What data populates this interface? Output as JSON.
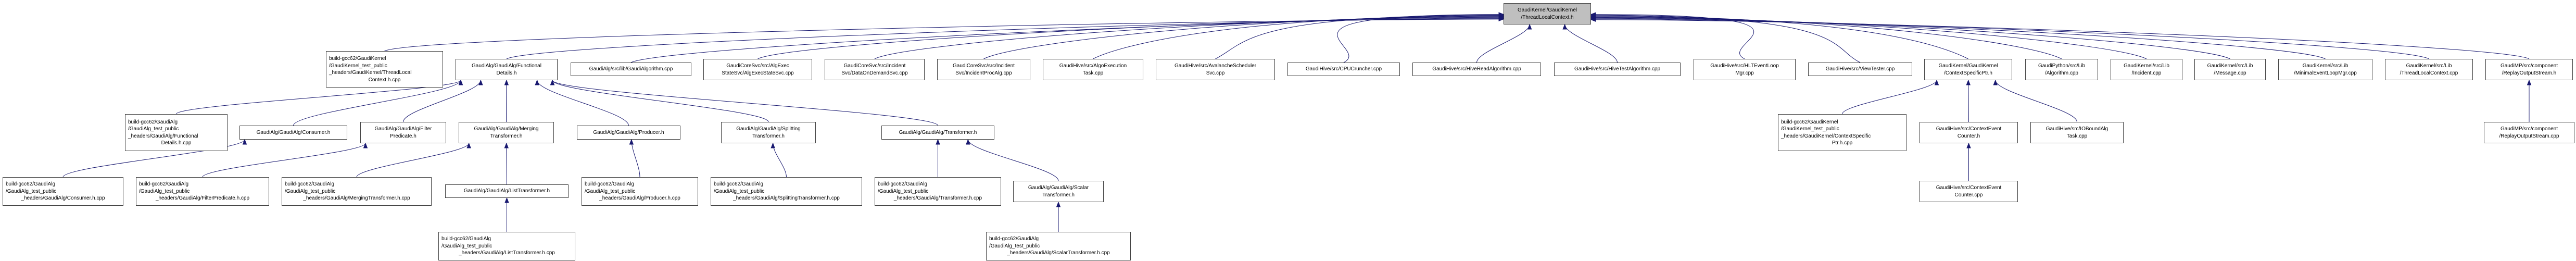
{
  "colors": {
    "edge": "#191970",
    "root_fill": "#bfbfbf",
    "border": "#404040"
  },
  "nodes": [
    {
      "id": "root",
      "lines": [
        "GaudiKernel/GaudiKernel",
        "/ThreadLocalContext.h"
      ]
    },
    {
      "id": "tlc_build",
      "lines": [
        "build-gcc62/GaudiKernel",
        "/GaudiKernel_test_public",
        "_headers/GaudiKernel/ThreadLocal",
        "Context.h.cpp"
      ]
    },
    {
      "id": "fd_h",
      "lines": [
        "GaudiAlg/GaudiAlg/Functional",
        "Details.h"
      ]
    },
    {
      "id": "ga_cpp",
      "lines": [
        "GaudiAlg/src/lib/GaudiAlgorithm.cpp"
      ]
    },
    {
      "id": "aess",
      "lines": [
        "GaudiCoreSvc/src/AlgExec",
        "StateSvc/AlgExecStateSvc.cpp"
      ]
    },
    {
      "id": "dods",
      "lines": [
        "GaudiCoreSvc/src/Incident",
        "Svc/DataOnDemandSvc.cpp"
      ]
    },
    {
      "id": "ipa",
      "lines": [
        "GaudiCoreSvc/src/Incident",
        "Svc/IncidentProcAlg.cpp"
      ]
    },
    {
      "id": "aet",
      "lines": [
        "GaudiHive/src/AlgoExecution",
        "Task.cpp"
      ]
    },
    {
      "id": "ass",
      "lines": [
        "GaudiHive/src/AvalancheScheduler",
        "Svc.cpp"
      ]
    },
    {
      "id": "cpu",
      "lines": [
        "GaudiHive/src/CPUCruncher.cpp"
      ]
    },
    {
      "id": "hra",
      "lines": [
        "GaudiHive/src/HiveReadAlgorithm.cpp"
      ]
    },
    {
      "id": "hta",
      "lines": [
        "GaudiHive/src/HiveTestAlgorithm.cpp"
      ]
    },
    {
      "id": "hlt",
      "lines": [
        "GaudiHive/src/HLTEventLoop",
        "Mgr.cpp"
      ]
    },
    {
      "id": "vt",
      "lines": [
        "GaudiHive/src/ViewTester.cpp"
      ]
    },
    {
      "id": "csp_h",
      "lines": [
        "GaudiKernel/GaudiKernel",
        "/ContextSpecificPtr.h"
      ]
    },
    {
      "id": "py_alg",
      "lines": [
        "GaudiPython/src/Lib",
        "/Algorithm.cpp"
      ]
    },
    {
      "id": "inc",
      "lines": [
        "GaudiKernel/src/Lib",
        "/Incident.cpp"
      ]
    },
    {
      "id": "msg",
      "lines": [
        "GaudiKernel/src/Lib",
        "/Message.cpp"
      ]
    },
    {
      "id": "mel",
      "lines": [
        "GaudiKernel/src/Lib",
        "/MinimalEventLoopMgr.cpp"
      ]
    },
    {
      "id": "tlc_cpp",
      "lines": [
        "GaudiKernel/src/Lib",
        "/ThreadLocalContext.cpp"
      ]
    },
    {
      "id": "ros_h",
      "lines": [
        "GaudiMP/src/component",
        "/ReplayOutputStream.h"
      ]
    },
    {
      "id": "fd_cpp",
      "lines": [
        "build-gcc62/GaudiAlg",
        "/GaudiAlg_test_public",
        "_headers/GaudiAlg/Functional",
        "Details.h.cpp"
      ]
    },
    {
      "id": "cons_h",
      "lines": [
        "GaudiAlg/GaudiAlg/Consumer.h"
      ]
    },
    {
      "id": "fp_h",
      "lines": [
        "GaudiAlg/GaudiAlg/Filter",
        "Predicate.h"
      ]
    },
    {
      "id": "mt_h",
      "lines": [
        "GaudiAlg/GaudiAlg/Merging",
        "Transformer.h"
      ]
    },
    {
      "id": "prod_h",
      "lines": [
        "GaudiAlg/GaudiAlg/Producer.h"
      ]
    },
    {
      "id": "st_h",
      "lines": [
        "GaudiAlg/GaudiAlg/Splitting",
        "Transformer.h"
      ]
    },
    {
      "id": "tr_h",
      "lines": [
        "GaudiAlg/GaudiAlg/Transformer.h"
      ]
    },
    {
      "id": "csp_cpp",
      "lines": [
        "build-gcc62/GaudiKernel",
        "/GaudiKernel_test_public",
        "_headers/GaudiKernel/ContextSpecific",
        "Ptr.h.cpp"
      ]
    },
    {
      "id": "ceh",
      "lines": [
        "GaudiHive/src/ContextEvent",
        "Counter.h"
      ]
    },
    {
      "id": "io",
      "lines": [
        "GaudiHive/src/IOBoundAlg",
        "Task.cpp"
      ]
    },
    {
      "id": "ros_cpp",
      "lines": [
        "GaudiMP/src/component",
        "/ReplayOutputStream.cpp"
      ]
    },
    {
      "id": "cons_cpp",
      "lines": [
        "build-gcc62/GaudiAlg",
        "/GaudiAlg_test_public",
        "_headers/GaudiAlg/Consumer.h.cpp"
      ]
    },
    {
      "id": "fp_cpp",
      "lines": [
        "build-gcc62/GaudiAlg",
        "/GaudiAlg_test_public",
        "_headers/GaudiAlg/FilterPredicate.h.cpp"
      ]
    },
    {
      "id": "mt_cpp",
      "lines": [
        "build-gcc62/GaudiAlg",
        "/GaudiAlg_test_public",
        "_headers/GaudiAlg/MergingTransformer.h.cpp"
      ]
    },
    {
      "id": "lt_h",
      "lines": [
        "GaudiAlg/GaudiAlg/ListTransformer.h"
      ]
    },
    {
      "id": "prod_cpp",
      "lines": [
        "build-gcc62/GaudiAlg",
        "/GaudiAlg_test_public",
        "_headers/GaudiAlg/Producer.h.cpp"
      ]
    },
    {
      "id": "st_cpp",
      "lines": [
        "build-gcc62/GaudiAlg",
        "/GaudiAlg_test_public",
        "_headers/GaudiAlg/SplittingTransformer.h.cpp"
      ]
    },
    {
      "id": "tr_cpp",
      "lines": [
        "build-gcc62/GaudiAlg",
        "/GaudiAlg_test_public",
        "_headers/GaudiAlg/Transformer.h.cpp"
      ]
    },
    {
      "id": "sc_h",
      "lines": [
        "GaudiAlg/GaudiAlg/Scalar",
        "Transformer.h"
      ]
    },
    {
      "id": "cec_cpp",
      "lines": [
        "GaudiHive/src/ContextEvent",
        "Counter.cpp"
      ]
    },
    {
      "id": "lt_cpp",
      "lines": [
        "build-gcc62/GaudiAlg",
        "/GaudiAlg_test_public",
        "_headers/GaudiAlg/ListTransformer.h.cpp"
      ]
    },
    {
      "id": "sc_cpp",
      "lines": [
        "build-gcc62/GaudiAlg",
        "/GaudiAlg_test_public",
        "_headers/GaudiAlg/ScalarTransformer.h.cpp"
      ]
    }
  ],
  "edges": [
    [
      "tlc_build",
      "root"
    ],
    [
      "fd_h",
      "root"
    ],
    [
      "ga_cpp",
      "root"
    ],
    [
      "aess",
      "root"
    ],
    [
      "dods",
      "root"
    ],
    [
      "ipa",
      "root"
    ],
    [
      "aet",
      "root"
    ],
    [
      "ass",
      "root"
    ],
    [
      "cpu",
      "root"
    ],
    [
      "hra",
      "root"
    ],
    [
      "hta",
      "root"
    ],
    [
      "hlt",
      "root"
    ],
    [
      "vt",
      "root"
    ],
    [
      "csp_h",
      "root"
    ],
    [
      "py_alg",
      "root"
    ],
    [
      "inc",
      "root"
    ],
    [
      "msg",
      "root"
    ],
    [
      "mel",
      "root"
    ],
    [
      "tlc_cpp",
      "root"
    ],
    [
      "ros_h",
      "root"
    ],
    [
      "fd_cpp",
      "fd_h"
    ],
    [
      "cons_h",
      "fd_h"
    ],
    [
      "fp_h",
      "fd_h"
    ],
    [
      "mt_h",
      "fd_h"
    ],
    [
      "prod_h",
      "fd_h"
    ],
    [
      "st_h",
      "fd_h"
    ],
    [
      "tr_h",
      "fd_h"
    ],
    [
      "cons_cpp",
      "cons_h"
    ],
    [
      "fp_cpp",
      "fp_h"
    ],
    [
      "mt_cpp",
      "mt_h"
    ],
    [
      "lt_h",
      "mt_h"
    ],
    [
      "lt_cpp",
      "lt_h"
    ],
    [
      "prod_cpp",
      "prod_h"
    ],
    [
      "st_cpp",
      "st_h"
    ],
    [
      "tr_cpp",
      "tr_h"
    ],
    [
      "sc_h",
      "tr_h"
    ],
    [
      "sc_cpp",
      "sc_h"
    ],
    [
      "csp_cpp",
      "csp_h"
    ],
    [
      "ceh",
      "csp_h"
    ],
    [
      "io",
      "csp_h"
    ],
    [
      "cec_cpp",
      "ceh"
    ],
    [
      "ros_cpp",
      "ros_h"
    ]
  ]
}
